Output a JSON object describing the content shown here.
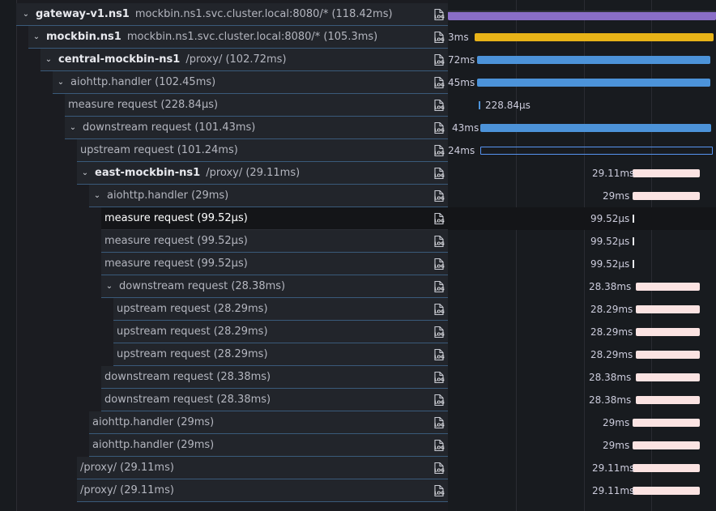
{
  "colors": {
    "purple": "#8a6ec8",
    "yellow": "#e8b318",
    "blue": "#4c93d9",
    "pink": "#fbe3e2",
    "white": "#e8e9ee"
  },
  "icons": {
    "log": "log-icon",
    "chevron": "chevron-down-icon"
  },
  "rows": [
    {
      "service": "gateway-v1.ns1",
      "operation": "mockbin.ns1.svc.cluster.local:8080/* (118.42ms)",
      "duration": "",
      "start": 0.0,
      "width": 1.0,
      "color": "purple"
    },
    {
      "service": "mockbin.ns1",
      "operation": "mockbin.ns1.svc.cluster.local:8080/* (105.3ms)",
      "duration": "3ms",
      "start": 0.1,
      "width": 0.89,
      "color": "yellow"
    },
    {
      "service": "central-mockbin-ns1",
      "operation": "/proxy/ (102.72ms)",
      "duration": "72ms",
      "start": 0.11,
      "width": 0.87,
      "color": "blue"
    },
    {
      "service": "",
      "operation": "aiohttp.handler (102.45ms)",
      "duration": "45ms",
      "start": 0.11,
      "width": 0.87,
      "color": "blue"
    },
    {
      "service": "",
      "operation": "measure request (228.84µs)",
      "duration": "228.84µs",
      "start": 0.115,
      "width": 0.002,
      "color": "blue"
    },
    {
      "service": "",
      "operation": "downstream request (101.43ms)",
      "duration": "43ms",
      "start": 0.12,
      "width": 0.86,
      "color": "blue"
    },
    {
      "service": "",
      "operation": "upstream request (101.24ms)",
      "duration": "24ms",
      "start": 0.12,
      "width": 0.86,
      "color": "blue"
    },
    {
      "service": "east-mockbin-ns1",
      "operation": "/proxy/ (29.11ms)",
      "duration": "29.11ms",
      "start": 0.69,
      "width": 0.25,
      "color": "pink"
    },
    {
      "service": "",
      "operation": "aiohttp.handler (29ms)",
      "duration": "29ms",
      "start": 0.69,
      "width": 0.25,
      "color": "pink"
    },
    {
      "service": "",
      "operation": "measure request (99.52µs)",
      "duration": "99.52µs",
      "start": 0.69,
      "width": 0.001,
      "color": "white"
    },
    {
      "service": "",
      "operation": "measure request (99.52µs)",
      "duration": "99.52µs",
      "start": 0.69,
      "width": 0.001,
      "color": "white"
    },
    {
      "service": "",
      "operation": "measure request (99.52µs)",
      "duration": "99.52µs",
      "start": 0.69,
      "width": 0.001,
      "color": "white"
    },
    {
      "service": "",
      "operation": "downstream request (28.38ms)",
      "duration": "28.38ms",
      "start": 0.7,
      "width": 0.24,
      "color": "pink"
    },
    {
      "service": "",
      "operation": "upstream request (28.29ms)",
      "duration": "28.29ms",
      "start": 0.7,
      "width": 0.24,
      "color": "pink"
    },
    {
      "service": "",
      "operation": "upstream request (28.29ms)",
      "duration": "28.29ms",
      "start": 0.7,
      "width": 0.24,
      "color": "pink"
    },
    {
      "service": "",
      "operation": "upstream request (28.29ms)",
      "duration": "28.29ms",
      "start": 0.7,
      "width": 0.24,
      "color": "pink"
    },
    {
      "service": "",
      "operation": "downstream request (28.38ms)",
      "duration": "28.38ms",
      "start": 0.7,
      "width": 0.24,
      "color": "pink"
    },
    {
      "service": "",
      "operation": "downstream request (28.38ms)",
      "duration": "28.38ms",
      "start": 0.7,
      "width": 0.24,
      "color": "pink"
    },
    {
      "service": "",
      "operation": "aiohttp.handler (29ms)",
      "duration": "29ms",
      "start": 0.69,
      "width": 0.25,
      "color": "pink"
    },
    {
      "service": "",
      "operation": "aiohttp.handler (29ms)",
      "duration": "29ms",
      "start": 0.69,
      "width": 0.25,
      "color": "pink"
    },
    {
      "service": "",
      "operation": "/proxy/ (29.11ms)",
      "duration": "29.11ms",
      "start": 0.69,
      "width": 0.25,
      "color": "pink"
    },
    {
      "service": "",
      "operation": "/proxy/ (29.11ms)",
      "duration": "29.11ms",
      "start": 0.69,
      "width": 0.25,
      "color": "pink"
    }
  ]
}
